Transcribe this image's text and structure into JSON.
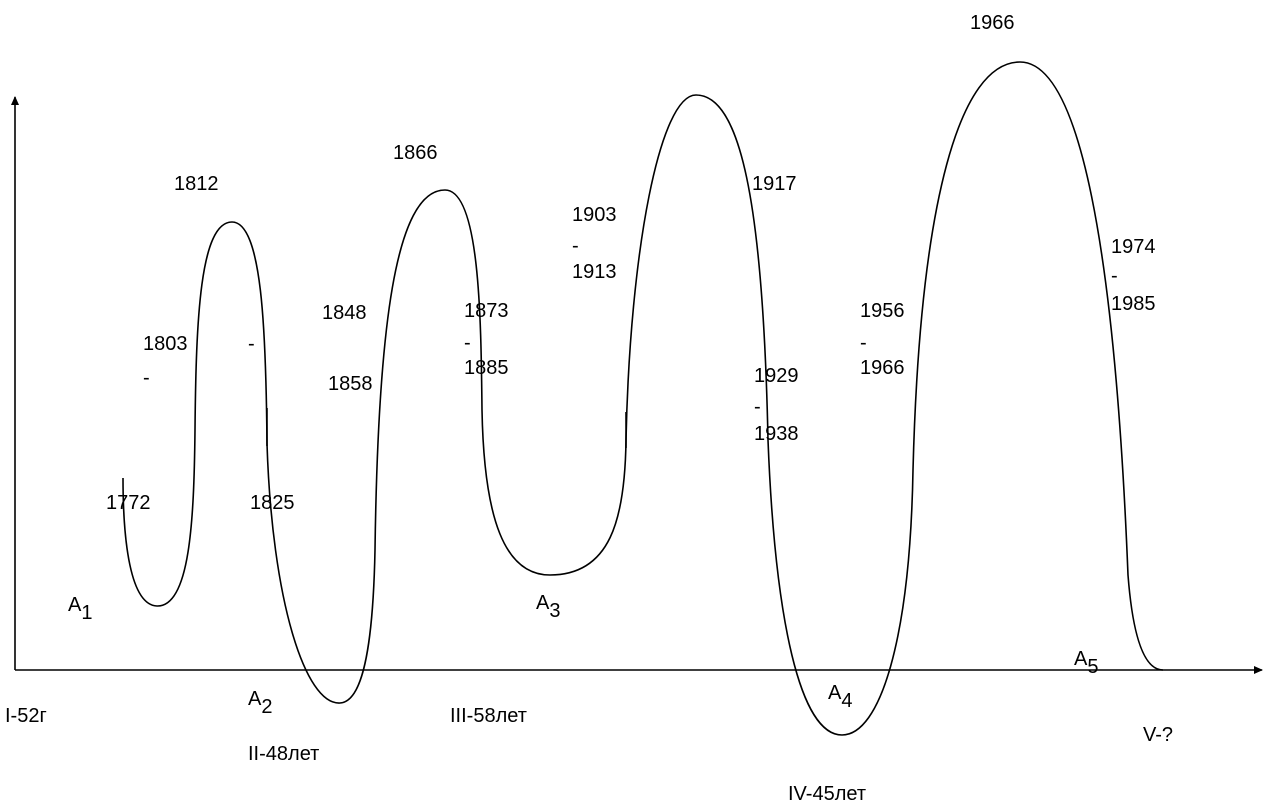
{
  "peaks": [
    "1812",
    "1866",
    "1917",
    "1966"
  ],
  "ranges": [
    {
      "from": "1803",
      "to": ""
    },
    {
      "from": "1848",
      "to": "1858"
    },
    {
      "from": "1873",
      "to": "1885"
    },
    {
      "from": "1903",
      "to": "1913"
    },
    {
      "from": "1929",
      "to": "1938"
    },
    {
      "from": "1956",
      "to": "1966"
    },
    {
      "from": "1974",
      "to": "1985"
    }
  ],
  "dash": "-",
  "years": [
    "1772",
    "1825"
  ],
  "points": [
    {
      "letter": "A",
      "index": "1"
    },
    {
      "letter": "A",
      "index": "2"
    },
    {
      "letter": "A",
      "index": "3"
    },
    {
      "letter": "A",
      "index": "4"
    },
    {
      "letter": "A",
      "index": "5"
    }
  ],
  "cycles": [
    "I-52г",
    "II-48лет",
    "III-58лет",
    "IV-45лет",
    "V-?"
  ]
}
